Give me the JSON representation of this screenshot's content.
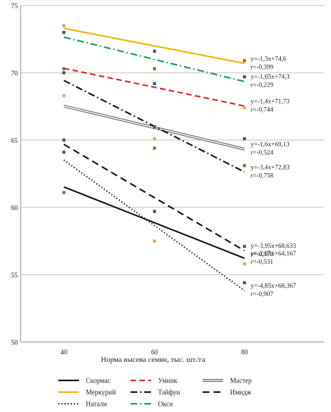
{
  "chart_data": {
    "type": "scatter",
    "xlabel": "Норма высева семян, тыс. шт./га",
    "ylabel": "",
    "x": [
      40,
      60,
      80
    ],
    "x_ticks": [
      "40",
      "60",
      "80"
    ],
    "ylim": [
      50,
      75
    ],
    "y_ticks": [
      "50",
      "55",
      "60",
      "65",
      "70",
      "75"
    ],
    "grid": "horizontal",
    "legend_position": "bottom",
    "series": [
      {
        "name": "Меркурий",
        "color": "#f0b400",
        "dash": "solid",
        "points": [
          73.5,
          71.6,
          70.9
        ],
        "trend": [
          74.6,
          -1.3
        ],
        "equation": "y=-1,3x+74,6",
        "r": "r=-0,399"
      },
      {
        "name": "Окси",
        "color": "#10a050",
        "dash": "dashdot",
        "points": [
          73.0,
          70.3,
          69.7
        ],
        "trend": [
          74.3,
          -1.65
        ],
        "equation": "y=-1,65x+74,3",
        "r": "r=-0,229"
      },
      {
        "name": "Умник",
        "color": "#dd2222",
        "dash": "dash",
        "points": [
          70.3,
          69.2,
          67.4
        ],
        "trend": [
          71.73,
          -1.4
        ],
        "equation": "y=-1,4x+71,73",
        "r": "r=-0,744"
      },
      {
        "name": "Мастер",
        "color": "#666666",
        "dash": "double",
        "points": [
          70.0,
          65.1,
          65.1
        ],
        "trend": [
          69.13,
          -1.6
        ],
        "equation": "y=-1,6x+69,13",
        "r": "r=-0,524"
      },
      {
        "name": "Тайфун",
        "color": "#111111",
        "dash": "dashdot",
        "points": [
          68.3,
          66.0,
          63.1
        ],
        "trend": [
          72.83,
          -3.4
        ],
        "equation": "y=-3,4x+72,83",
        "r": "r=-0,758"
      },
      {
        "name": "Имидж",
        "color": "#111111",
        "dash": "longdash",
        "points": [
          65.0,
          64.4,
          57.1
        ],
        "trend": [
          68.633,
          -3.95
        ],
        "equation": "y=-3,95x+68,633",
        "r": "r=-0,570"
      },
      {
        "name": "Скормас",
        "color": "#111111",
        "dash": "solid",
        "points": [
          61.1,
          59.7,
          55.8
        ],
        "trend": [
          64.167,
          -2.65
        ],
        "equation": "y=-2,65x+64,167",
        "r": "r=-0,531"
      },
      {
        "name": "Натали",
        "color": "#111111",
        "dash": "dot",
        "points": [
          64.1,
          57.5,
          54.4
        ],
        "trend": [
          68.367,
          -4.85
        ],
        "equation": "y=-4,85x+68,367",
        "r": "r=-0,907"
      }
    ],
    "legend": [
      {
        "name": "Скормас",
        "color": "#111111",
        "dash": "solid"
      },
      {
        "name": "Умник",
        "color": "#dd2222",
        "dash": "dash"
      },
      {
        "name": "Мастер",
        "color": "#666666",
        "dash": "double"
      },
      {
        "name": "Меркурий",
        "color": "#f0b400",
        "dash": "solid"
      },
      {
        "name": "Тайфун",
        "color": "#111111",
        "dash": "dashdot"
      },
      {
        "name": "Имидж",
        "color": "#111111",
        "dash": "longdash"
      },
      {
        "name": "Натали",
        "color": "#111111",
        "dash": "dot"
      },
      {
        "name": "Окси",
        "color": "#10a050",
        "dash": "dashdot"
      }
    ]
  }
}
